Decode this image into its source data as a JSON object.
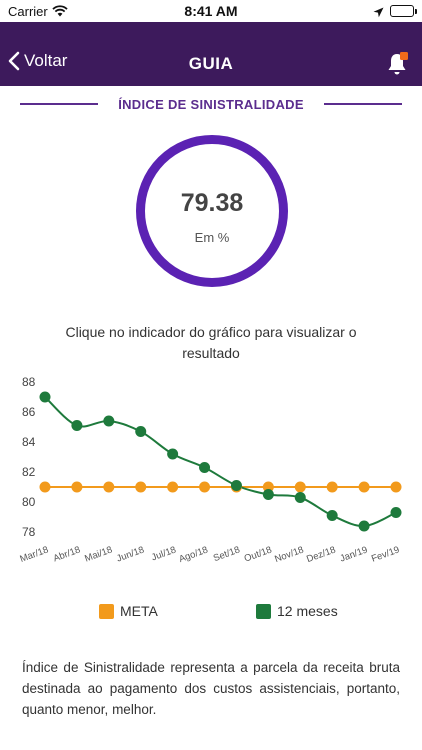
{
  "status_bar": {
    "carrier": "Carrier",
    "time": "8:41 AM"
  },
  "nav": {
    "back_label": "Voltar",
    "title": "GUIA"
  },
  "section": {
    "title": "ÍNDICE DE SINISTRALIDADE"
  },
  "gauge": {
    "value": "79.38",
    "unit": "Em %",
    "color": "#5b22b3"
  },
  "hint": "Clique no indicador do gráfico para visualizar o resultado",
  "colors": {
    "header": "#3d1a5c",
    "accent": "#5b2d8e",
    "meta": "#f29a1c",
    "twelve_months": "#1e7a3c",
    "notification": "#f26a1b"
  },
  "chart_data": {
    "type": "line",
    "categories": [
      "Mar/18",
      "Abr/18",
      "Mai/18",
      "Jun/18",
      "Jul/18",
      "Ago/18",
      "Set/18",
      "Out/18",
      "Nov/18",
      "Dez/18",
      "Jan/19",
      "Fev/19"
    ],
    "y_ticks": [
      "88",
      "86",
      "84",
      "82",
      "80",
      "78"
    ],
    "ylim": [
      78,
      88
    ],
    "series": [
      {
        "name": "META",
        "color": "#f29a1c",
        "smooth": false,
        "values": [
          81.0,
          81.0,
          81.0,
          81.0,
          81.0,
          81.0,
          81.0,
          81.0,
          81.0,
          81.0,
          81.0,
          81.0
        ]
      },
      {
        "name": "12 meses",
        "color": "#1e7a3c",
        "smooth": true,
        "values": [
          87.0,
          85.1,
          85.4,
          84.7,
          83.2,
          82.3,
          81.1,
          80.5,
          80.3,
          79.1,
          78.4,
          79.3
        ]
      }
    ]
  },
  "legend": {
    "meta": "META",
    "twelve_months": "12 meses"
  },
  "description": "Índice de Sinistralidade representa a parcela da receita bruta destinada ao pagamento dos custos assistenciais, portanto, quanto menor, melhor."
}
